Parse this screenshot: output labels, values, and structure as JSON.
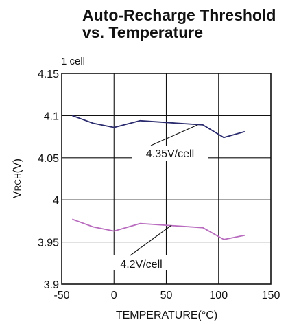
{
  "chart_data": {
    "type": "line",
    "title_lines": [
      "Auto-Recharge Threshold",
      "vs. Temperature"
    ],
    "subtitle": "1 cell",
    "xlabel": "TEMPERATURE(°C)",
    "ylabel": {
      "main": "V",
      "sub": "RCH",
      "suffix": "(V)"
    },
    "xlim": [
      -50,
      150
    ],
    "ylim": [
      3.9,
      4.15
    ],
    "xticks": [
      -50,
      0,
      50,
      100,
      150
    ],
    "xtick_labels": [
      "-50",
      "0",
      "50",
      "100",
      "150"
    ],
    "yticks": [
      3.9,
      3.95,
      4.0,
      4.05,
      4.1,
      4.15
    ],
    "ytick_labels": [
      "3.9",
      "3.95",
      "4",
      "4.05",
      "4.1",
      "4.15"
    ],
    "grid": true,
    "series": [
      {
        "name": "4.35V/cell",
        "color": "#2a2a6e",
        "x": [
          -40,
          -20,
          0,
          25,
          85,
          105,
          125
        ],
        "y": [
          4.1,
          4.091,
          4.086,
          4.094,
          4.089,
          4.074,
          4.081
        ]
      },
      {
        "name": "4.2V/cell",
        "color": "#b86bbe",
        "x": [
          -40,
          -20,
          0,
          25,
          85,
          105,
          125
        ],
        "y": [
          3.977,
          3.968,
          3.963,
          3.972,
          3.967,
          3.953,
          3.958
        ]
      }
    ],
    "annotations": [
      {
        "text": "4.35V/cell",
        "series": 0,
        "point_x": 80,
        "point_y": 4.089
      },
      {
        "text": "4.2V/cell",
        "series": 1,
        "point_x": 55,
        "point_y": 3.97
      }
    ]
  }
}
